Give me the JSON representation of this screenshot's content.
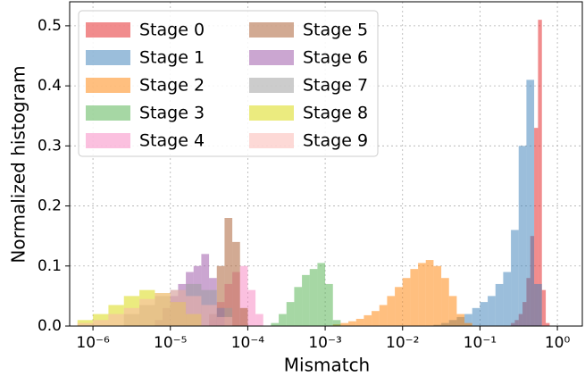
{
  "chart_data": {
    "type": "histogram",
    "xlabel": "Mismatch",
    "ylabel": "Normalized histogram",
    "xscale": "log",
    "xlim": [
      5e-07,
      2.1
    ],
    "ylim": [
      0,
      0.54
    ],
    "xticks": [
      {
        "value": 1e-06,
        "label": "10⁻⁶"
      },
      {
        "value": 1e-05,
        "label": "10⁻⁵"
      },
      {
        "value": 0.0001,
        "label": "10⁻⁴"
      },
      {
        "value": 0.001,
        "label": "10⁻³"
      },
      {
        "value": 0.01,
        "label": "10⁻²"
      },
      {
        "value": 0.1,
        "label": "10⁻¹"
      },
      {
        "value": 1,
        "label": "10⁰"
      }
    ],
    "yticks": [
      {
        "value": 0,
        "label": "0.0"
      },
      0.1,
      0.2,
      0.3,
      0.4,
      0.5
    ],
    "grid": true,
    "legend": "upper left",
    "alpha": 0.5,
    "series": [
      {
        "name": "Stage 0",
        "color": "#e41a1c",
        "bins": [
          0.2512,
          0.2818,
          0.3162,
          0.3548,
          0.3981,
          0.4467,
          0.5012,
          0.5623,
          0.631,
          0.7079,
          0.7943
        ],
        "values": [
          0.005,
          0.01,
          0.02,
          0.04,
          0.08,
          0.15,
          0.33,
          0.51,
          0.06,
          0.005
        ]
      },
      {
        "name": "Stage 1",
        "color": "#377eb8",
        "bins": [
          0.02512,
          0.03162,
          0.03981,
          0.05012,
          0.0631,
          0.07943,
          0.1,
          0.1259,
          0.1585,
          0.1995,
          0.2512,
          0.3162,
          0.3981,
          0.5012,
          0.631
        ],
        "values": [
          0.002,
          0.005,
          0.01,
          0.015,
          0.02,
          0.03,
          0.04,
          0.05,
          0.07,
          0.09,
          0.16,
          0.3,
          0.41,
          0.07
        ]
      },
      {
        "name": "Stage 2",
        "color": "#ff7f00",
        "bins": [
          0.001259,
          0.001585,
          0.001995,
          0.002512,
          0.003162,
          0.003981,
          0.005012,
          0.00631,
          0.007943,
          0.01,
          0.01259,
          0.01585,
          0.01995,
          0.02512,
          0.03162,
          0.03981,
          0.05012,
          0.0631,
          0.07943
        ],
        "values": [
          0.003,
          0.005,
          0.008,
          0.012,
          0.018,
          0.025,
          0.035,
          0.05,
          0.065,
          0.08,
          0.095,
          0.105,
          0.11,
          0.1,
          0.08,
          0.05,
          0.02,
          0.005
        ]
      },
      {
        "name": "Stage 3",
        "color": "#4daf4a",
        "bins": [
          0.0001995,
          0.0002512,
          0.0003162,
          0.0003981,
          0.0005012,
          0.000631,
          0.0007943,
          0.001,
          0.001259,
          0.001585
        ],
        "values": [
          0.005,
          0.02,
          0.04,
          0.065,
          0.085,
          0.095,
          0.105,
          0.07,
          0.01
        ]
      },
      {
        "name": "Stage 4",
        "color": "#f781bf",
        "bins": [
          3.162e-05,
          3.981e-05,
          5.012e-05,
          6.31e-05,
          7.943e-05,
          0.0001,
          0.0001259,
          0.0001585
        ],
        "values": [
          0.01,
          0.04,
          0.07,
          0.09,
          0.1,
          0.06,
          0.02
        ]
      },
      {
        "name": "Stage 5",
        "color": "#a65628",
        "bins": [
          3.162e-05,
          3.981e-05,
          5.012e-05,
          6.31e-05,
          7.943e-05,
          0.0001
        ],
        "values": [
          0.02,
          0.1,
          0.18,
          0.14,
          0.03
        ]
      },
      {
        "name": "Stage 6",
        "color": "#984ea3",
        "bins": [
          6.31e-06,
          7.943e-06,
          1e-05,
          1.259e-05,
          1.585e-05,
          1.995e-05,
          2.512e-05,
          3.162e-05,
          3.981e-05,
          5.012e-05
        ],
        "values": [
          0.01,
          0.03,
          0.05,
          0.07,
          0.09,
          0.1,
          0.12,
          0.08,
          0.03
        ]
      },
      {
        "name": "Stage 7",
        "color": "#999999",
        "bins": [
          2.512e-06,
          3.981e-06,
          6.31e-06,
          1e-05,
          1.585e-05,
          2.512e-05,
          3.981e-05,
          6.31e-05
        ],
        "values": [
          0.02,
          0.035,
          0.05,
          0.06,
          0.07,
          0.06,
          0.03
        ]
      },
      {
        "name": "Stage 8",
        "color": "#d8d800",
        "bins": [
          6.31e-07,
          1e-06,
          1.585e-06,
          2.512e-06,
          3.981e-06,
          6.31e-06,
          1e-05,
          1.585e-05,
          2.512e-05
        ],
        "values": [
          0.01,
          0.02,
          0.035,
          0.05,
          0.06,
          0.055,
          0.04,
          0.02
        ]
      },
      {
        "name": "Stage 9",
        "color": "#fbb4ae",
        "bins": [
          6.31e-07,
          1e-06,
          1.585e-06,
          2.512e-06,
          3.981e-06,
          6.31e-06,
          1e-05,
          1.585e-05,
          2.512e-05,
          3.981e-05,
          6.31e-05
        ],
        "values": [
          0.005,
          0.01,
          0.02,
          0.03,
          0.045,
          0.055,
          0.06,
          0.05,
          0.035,
          0.015
        ]
      }
    ]
  }
}
